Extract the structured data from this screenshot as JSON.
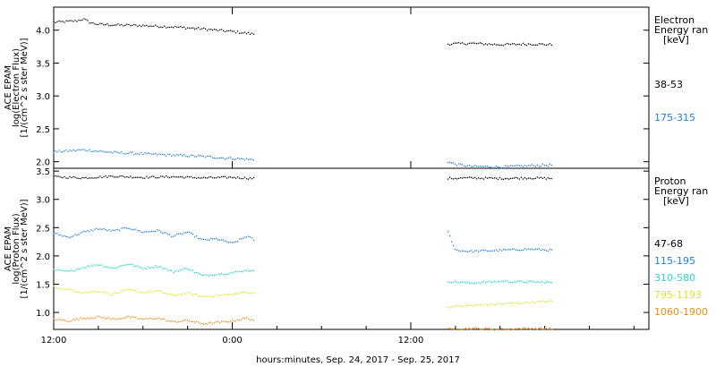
{
  "chart_data": [
    {
      "type": "scatter",
      "panel": "electron",
      "ylabel": [
        "ACE EPAM",
        "log(Electron Flux)",
        "[1/(cm^2 s ster MeV)]"
      ],
      "ylim": [
        1.9,
        4.35
      ],
      "yticks": [
        "2.0",
        "2.5",
        "3.0",
        "3.5",
        "4.0"
      ],
      "legend_title": [
        "Electron",
        "Energy ran",
        "[keV]"
      ],
      "series": [
        {
          "name": "38-53",
          "color": "#000000",
          "segments": [
            {
              "x": [
                0,
                1.5,
                2,
                2.5,
                3,
                4,
                6,
                8,
                10,
                12,
                13.5
              ],
              "y": [
                4.12,
                4.14,
                4.17,
                4.11,
                4.09,
                4.08,
                4.07,
                4.05,
                4.02,
                3.98,
                3.94
              ]
            },
            {
              "x": [
                26.5,
                28,
                30,
                32,
                33.5
              ],
              "y": [
                3.79,
                3.8,
                3.78,
                3.79,
                3.78
              ]
            }
          ]
        },
        {
          "name": "175-315",
          "color": "#1f7fd6",
          "segments": [
            {
              "x": [
                0,
                2,
                4,
                6,
                8,
                10,
                12,
                13.5
              ],
              "y": [
                2.15,
                2.18,
                2.14,
                2.12,
                2.1,
                2.08,
                2.05,
                2.03
              ]
            },
            {
              "x": [
                26.5,
                27,
                28,
                30,
                32,
                33.5
              ],
              "y": [
                2.0,
                1.96,
                1.93,
                1.92,
                1.94,
                1.95
              ]
            }
          ]
        }
      ]
    },
    {
      "type": "scatter",
      "panel": "proton",
      "ylabel": [
        "ACE EPAM",
        "log(Proton Flux)",
        "[1/(cm^2 s ster MeV)]"
      ],
      "ylim": [
        0.7,
        3.55
      ],
      "yticks": [
        "1.0",
        "1.5",
        "2.0",
        "2.5",
        "3.0",
        "3.5"
      ],
      "legend_title": [
        "Proton",
        "Energy ran",
        "[keV]"
      ],
      "series": [
        {
          "name": "47-68",
          "color": "#000000",
          "segments": [
            {
              "x": [
                0,
                2,
                4,
                6,
                8,
                10,
                12,
                13.5
              ],
              "y": [
                3.4,
                3.38,
                3.41,
                3.39,
                3.4,
                3.38,
                3.39,
                3.37
              ]
            },
            {
              "x": [
                26.5,
                28,
                30,
                32,
                33.5
              ],
              "y": [
                3.37,
                3.38,
                3.37,
                3.38,
                3.37
              ]
            }
          ]
        },
        {
          "name": "115-195",
          "color": "#1f7fd6",
          "segments": [
            {
              "x": [
                0,
                1,
                2,
                3,
                4,
                5,
                6,
                7,
                8,
                9,
                10,
                11,
                12,
                13,
                13.5
              ],
              "y": [
                2.4,
                2.33,
                2.42,
                2.48,
                2.44,
                2.5,
                2.42,
                2.45,
                2.35,
                2.42,
                2.28,
                2.3,
                2.22,
                2.35,
                2.28
              ]
            },
            {
              "x": [
                26.5,
                27,
                28,
                30,
                32,
                33.5
              ],
              "y": [
                2.42,
                2.1,
                2.08,
                2.1,
                2.12,
                2.1
              ]
            }
          ]
        },
        {
          "name": "310-580",
          "color": "#22d5d5",
          "segments": [
            {
              "x": [
                0,
                1,
                2,
                3,
                4,
                5,
                6,
                7,
                8,
                9,
                10,
                11,
                12,
                13,
                13.5
              ],
              "y": [
                1.75,
                1.72,
                1.8,
                1.85,
                1.78,
                1.86,
                1.78,
                1.82,
                1.72,
                1.78,
                1.65,
                1.68,
                1.7,
                1.75,
                1.72
              ]
            },
            {
              "x": [
                26.5,
                28,
                30,
                32,
                33.5
              ],
              "y": [
                1.55,
                1.52,
                1.55,
                1.54,
                1.53
              ]
            }
          ]
        },
        {
          "name": "795-1193",
          "color": "#d8e81e",
          "segments": [
            {
              "x": [
                0,
                1,
                2,
                3,
                4,
                5,
                6,
                7,
                8,
                9,
                10,
                11,
                12,
                13,
                13.5
              ],
              "y": [
                1.45,
                1.4,
                1.35,
                1.38,
                1.32,
                1.4,
                1.35,
                1.38,
                1.3,
                1.34,
                1.28,
                1.3,
                1.32,
                1.36,
                1.33
              ]
            },
            {
              "x": [
                26.5,
                28,
                30,
                32,
                33.5
              ],
              "y": [
                1.1,
                1.12,
                1.15,
                1.18,
                1.2
              ]
            }
          ]
        },
        {
          "name": "1060-1900",
          "color": "#ee8a1a",
          "segments": [
            {
              "x": [
                0,
                1,
                2,
                3,
                4,
                5,
                6,
                7,
                8,
                9,
                10,
                11,
                12,
                13,
                13.5
              ],
              "y": [
                0.88,
                0.85,
                0.9,
                0.92,
                0.88,
                0.92,
                0.88,
                0.9,
                0.83,
                0.86,
                0.8,
                0.82,
                0.85,
                0.9,
                0.86
              ]
            },
            {
              "x": [
                26.5,
                28,
                30,
                32,
                33.5
              ],
              "y": [
                0.7,
                0.72,
                0.7,
                0.72,
                0.71
              ]
            }
          ]
        }
      ]
    }
  ],
  "x_axis": {
    "unit": "hours since Sep. 24, 2017 12:00",
    "xlim": [
      0,
      40
    ],
    "ticks": [
      {
        "x": 0,
        "label": "12:00"
      },
      {
        "x": 12,
        "label": "0:00"
      },
      {
        "x": 24,
        "label": "12:00"
      }
    ],
    "xlabel": "hours:minutes, Sep. 24, 2017 - Sep. 25, 2017"
  }
}
